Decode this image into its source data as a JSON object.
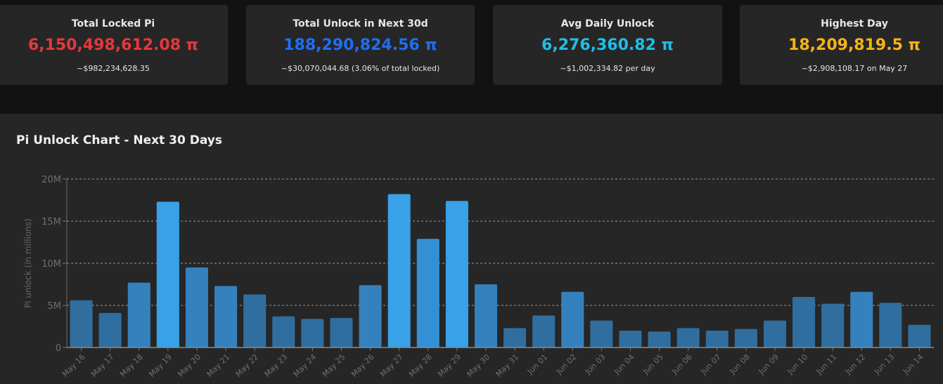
{
  "cards": [
    {
      "title": "Total Locked Pi",
      "value": "6,150,498,612.08 π",
      "sub": "~$982,234,628.35",
      "color": "#e5383b"
    },
    {
      "title": "Total Unlock in Next 30d",
      "value": "188,290,824.56 π",
      "sub": "~$30,070,044.68 (3.06% of total locked)",
      "color": "#1e6ff2"
    },
    {
      "title": "Avg Daily Unlock",
      "value": "6,276,360.82 π",
      "sub": "~$1,002,334.82 per day",
      "color": "#1fbfe6"
    },
    {
      "title": "Highest Day",
      "value": "18,209,819.5 π",
      "sub": "~$2,908,108.17 on May 27",
      "color": "#f5b417"
    }
  ],
  "chart_data": {
    "type": "bar",
    "title": "Pi Unlock Chart - Next 30 Days",
    "xlabel": "",
    "ylabel": "Pi unlock (in millions)",
    "ylim": [
      0,
      20000000
    ],
    "yticks": [
      0,
      5000000,
      10000000,
      15000000,
      20000000
    ],
    "ytick_labels": [
      "0",
      "5M",
      "10M",
      "15M",
      "20M"
    ],
    "grid": true,
    "categories": [
      "May 16",
      "May 17",
      "May 18",
      "May 19",
      "May 20",
      "May 21",
      "May 22",
      "May 23",
      "May 24",
      "May 25",
      "May 26",
      "May 27",
      "May 28",
      "May 29",
      "May 30",
      "May 31",
      "Jun 01",
      "Jun 02",
      "Jun 03",
      "Jun 04",
      "Jun 05",
      "Jun 06",
      "Jun 07",
      "Jun 08",
      "Jun 09",
      "Jun 10",
      "Jun 11",
      "Jun 12",
      "Jun 13",
      "Jun 14"
    ],
    "values": [
      5600000,
      4100000,
      7700000,
      17300000,
      9500000,
      7300000,
      6300000,
      3700000,
      3400000,
      3500000,
      7400000,
      18209819.5,
      12900000,
      17400000,
      7500000,
      2300000,
      3800000,
      6600000,
      3200000,
      2000000,
      1900000,
      2300000,
      2000000,
      2200000,
      3200000,
      6000000,
      5200000,
      6600000,
      5300000,
      2700000
    ]
  }
}
